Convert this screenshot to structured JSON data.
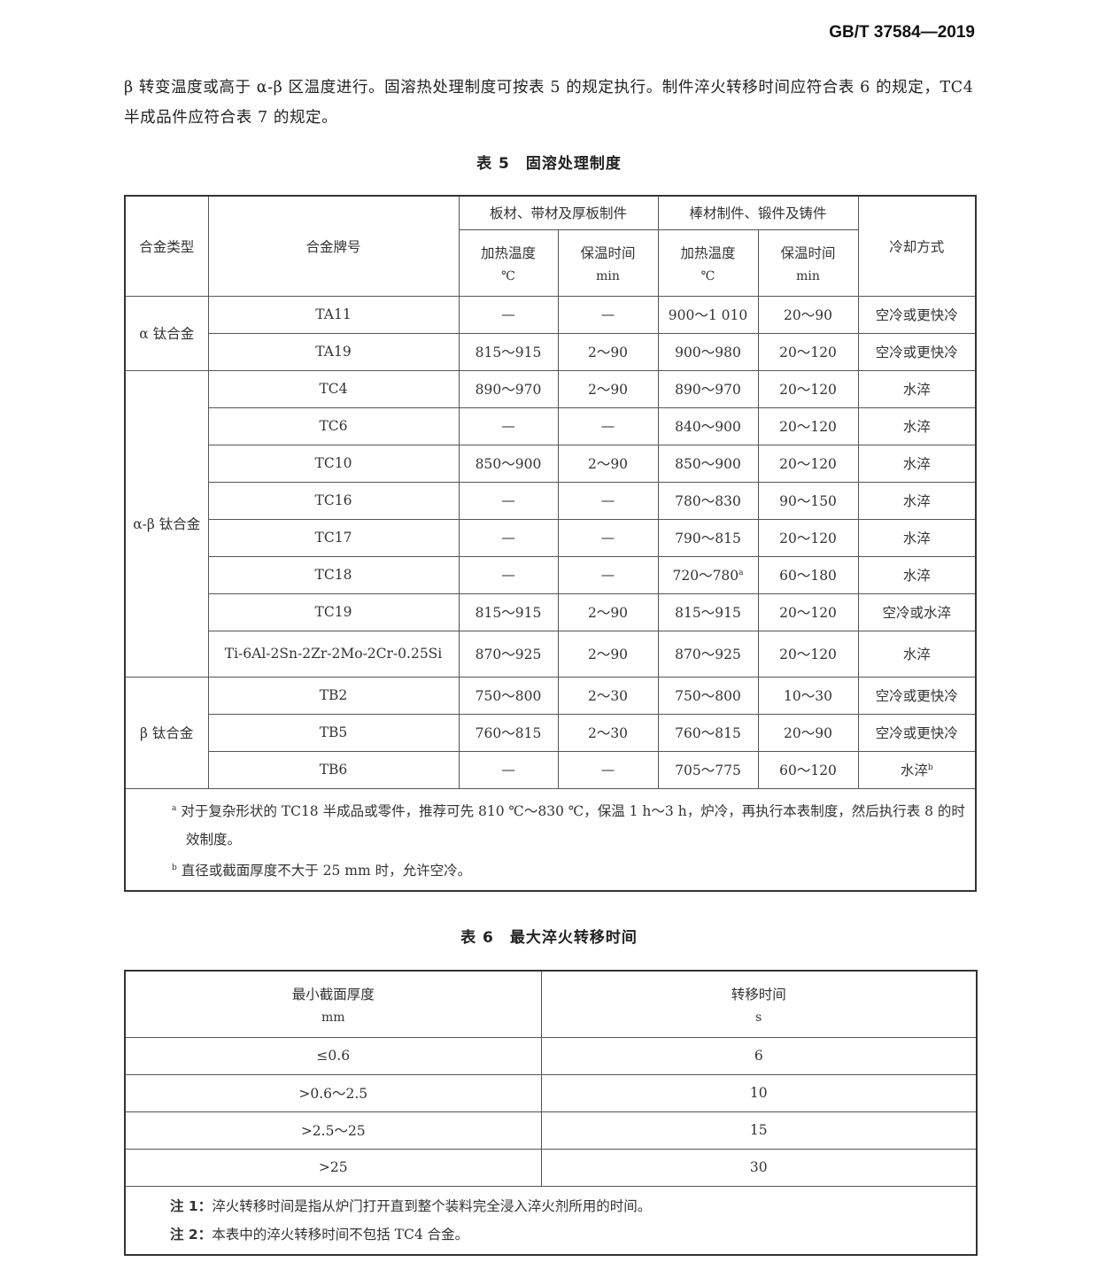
{
  "header": {
    "code": "GB/T 37584—2019"
  },
  "paragraph": "β 转变温度或高于 α-β 区温度进行。固溶热处理制度可按表 5 的规定执行。制件淬火转移时间应符合表 6 的规定，TC4 半成品件应符合表 7 的规定。",
  "table5": {
    "caption": "表 5　固溶处理制度",
    "headers": {
      "alloy_type": "合金类型",
      "grade": "合金牌号",
      "group_plate": "板材、带材及厚板制件",
      "group_bar": "棒材制件、锻件及铸件",
      "heat_temp": "加热温度",
      "hold_time": "保温时间",
      "unit_c": "℃",
      "unit_min": "min",
      "cooling": "冷却方式"
    },
    "groups": [
      {
        "label": "α 钛合金",
        "rows": [
          {
            "grade": "TA11",
            "plate_temp": "—",
            "plate_time": "—",
            "bar_temp": "900～1 010",
            "bar_time": "20～90",
            "cooling": "空冷或更快冷"
          },
          {
            "grade": "TA19",
            "plate_temp": "815～915",
            "plate_time": "2～90",
            "bar_temp": "900～980",
            "bar_time": "20～120",
            "cooling": "空冷或更快冷"
          }
        ]
      },
      {
        "label": "α-β 钛合金",
        "rows": [
          {
            "grade": "TC4",
            "plate_temp": "890～970",
            "plate_time": "2～90",
            "bar_temp": "890～970",
            "bar_time": "20～120",
            "cooling": "水淬"
          },
          {
            "grade": "TC6",
            "plate_temp": "—",
            "plate_time": "—",
            "bar_temp": "840～900",
            "bar_time": "20～120",
            "cooling": "水淬"
          },
          {
            "grade": "TC10",
            "plate_temp": "850～900",
            "plate_time": "2～90",
            "bar_temp": "850～900",
            "bar_time": "20～120",
            "cooling": "水淬"
          },
          {
            "grade": "TC16",
            "plate_temp": "—",
            "plate_time": "—",
            "bar_temp": "780～830",
            "bar_time": "90～150",
            "cooling": "水淬"
          },
          {
            "grade": "TC17",
            "plate_temp": "—",
            "plate_time": "—",
            "bar_temp": "790～815",
            "bar_time": "20～120",
            "cooling": "水淬"
          },
          {
            "grade": "TC18",
            "plate_temp": "—",
            "plate_time": "—",
            "bar_temp": "720～780",
            "bar_temp_note": "a",
            "bar_time": "60～180",
            "cooling": "水淬"
          },
          {
            "grade": "TC19",
            "plate_temp": "815～915",
            "plate_time": "2～90",
            "bar_temp": "815～915",
            "bar_time": "20～120",
            "cooling": "空冷或水淬"
          },
          {
            "grade": "Ti-6Al-2Sn-2Zr-2Mo-2Cr-0.25Si",
            "plate_temp": "870～925",
            "plate_time": "2～90",
            "bar_temp": "870～925",
            "bar_time": "20～120",
            "cooling": "水淬"
          }
        ]
      },
      {
        "label": "β 钛合金",
        "rows": [
          {
            "grade": "TB2",
            "plate_temp": "750～800",
            "plate_time": "2～30",
            "bar_temp": "750～800",
            "bar_time": "10～30",
            "cooling": "空冷或更快冷"
          },
          {
            "grade": "TB5",
            "plate_temp": "760～815",
            "plate_time": "2～30",
            "bar_temp": "760～815",
            "bar_time": "20～90",
            "cooling": "空冷或更快冷"
          },
          {
            "grade": "TB6",
            "plate_temp": "—",
            "plate_time": "—",
            "bar_temp": "705～775",
            "bar_time": "60～120",
            "cooling": "水淬",
            "cooling_note": "b"
          }
        ]
      }
    ],
    "footnotes": [
      {
        "mark": "a",
        "text": "对于复杂形状的 TC18 半成品或零件，推荐可先 810 ℃～830 ℃，保温 1 h～3 h，炉冷，再执行本表制度，然后执行表 8 的时效制度。"
      },
      {
        "mark": "b",
        "text": "直径或截面厚度不大于 25 mm 时，允许空冷。"
      }
    ]
  },
  "table6": {
    "caption": "表 6　最大淬火转移时间",
    "headers": {
      "thickness": "最小截面厚度",
      "thickness_unit": "mm",
      "time": "转移时间",
      "time_unit": "s"
    },
    "rows": [
      {
        "thickness": "≤0.6",
        "time": "6"
      },
      {
        "thickness": ">0.6～2.5",
        "time": "10"
      },
      {
        "thickness": ">2.5～25",
        "time": "15"
      },
      {
        "thickness": ">25",
        "time": "30"
      }
    ],
    "notes": [
      {
        "label": "注 1：",
        "text": "淬火转移时间是指从炉门打开直到整个装料完全浸入淬火剂所用的时间。"
      },
      {
        "label": "注 2：",
        "text": "本表中的淬火转移时间不包括 TC4 合金。"
      }
    ]
  }
}
